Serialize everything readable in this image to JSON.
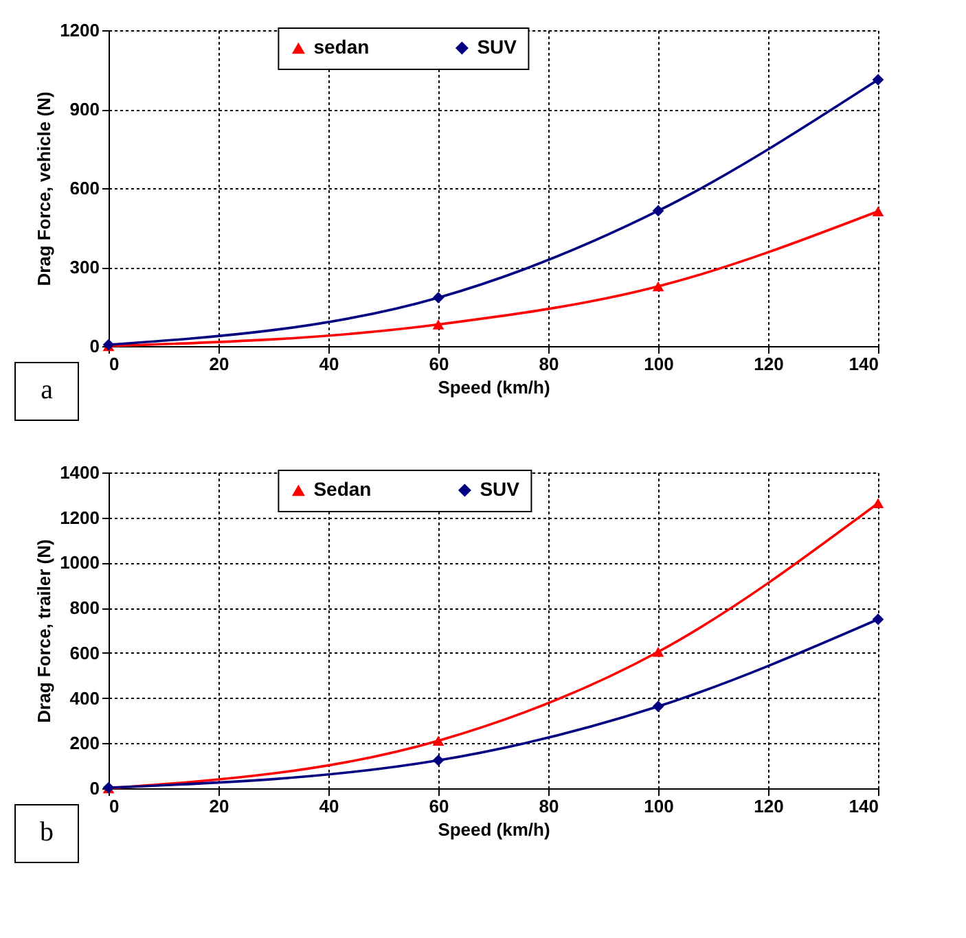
{
  "chart_data": [
    {
      "type": "line",
      "xlabel": "Speed (km/h)",
      "ylabel": "Drag Force, vehicle (N)",
      "x": [
        0,
        60,
        100,
        140
      ],
      "series": [
        {
          "name": "sedan",
          "color": "#ff0000",
          "marker": "triangle",
          "values": [
            0,
            82,
            227,
            512
          ]
        },
        {
          "name": "SUV",
          "color": "#000080",
          "marker": "diamond",
          "values": [
            5,
            184,
            514,
            1012
          ]
        }
      ],
      "xlim": [
        0,
        140
      ],
      "xticks": [
        0,
        20,
        40,
        60,
        80,
        100,
        120,
        140
      ],
      "ylim": [
        0,
        1200
      ],
      "yticks": [
        0,
        300,
        600,
        900,
        1200
      ],
      "grid": true,
      "legend": "top",
      "line_style": "solid",
      "annotations": [
        "a"
      ]
    },
    {
      "type": "line",
      "xlabel": "Speed (km/h)",
      "ylabel": "Drag Force, trailer (N)",
      "x": [
        0,
        60,
        100,
        140
      ],
      "series": [
        {
          "name": "Sedan",
          "color": "#ff0000",
          "marker": "triangle",
          "values": [
            0,
            211,
            605,
            1264
          ]
        },
        {
          "name": "SUV",
          "color": "#000080",
          "marker": "diamond",
          "values": [
            3,
            124,
            363,
            749
          ]
        }
      ],
      "xlim": [
        0,
        140
      ],
      "xticks": [
        0,
        20,
        40,
        60,
        80,
        100,
        120,
        140
      ],
      "ylim": [
        0,
        1400
      ],
      "yticks": [
        0,
        200,
        400,
        600,
        800,
        1000,
        1200,
        1400
      ],
      "grid": true,
      "legend": "top",
      "line_style": "solid",
      "annotations": [
        "b"
      ]
    }
  ]
}
